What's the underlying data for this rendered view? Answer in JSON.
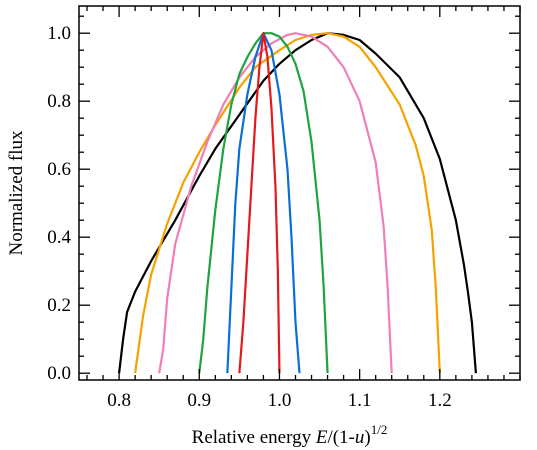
{
  "chart_data": {
    "type": "line",
    "title": "",
    "xlabel": {
      "prefix": "Relative energy ",
      "var_e": "E",
      "middle": "/(1-",
      "var_u": "u",
      "close": ")",
      "exponent": "1/2"
    },
    "ylabel": "Normalized flux",
    "xlim": [
      0.75,
      1.3
    ],
    "ylim": [
      -0.02,
      1.08
    ],
    "xticks": [
      0.8,
      0.9,
      1.0,
      1.1,
      1.2
    ],
    "xtick_labels": [
      "0.8",
      "0.9",
      "1.0",
      "1.1",
      "1.2"
    ],
    "xminor_step": 0.02,
    "yticks": [
      0.0,
      0.2,
      0.4,
      0.6,
      0.8,
      1.0
    ],
    "ytick_labels": [
      "0.0",
      "0.2",
      "0.4",
      "0.6",
      "0.8",
      "1.0"
    ],
    "yminor_step": 0.05,
    "grid": false,
    "legend": "none",
    "series": [
      {
        "color": "#000000",
        "points": [
          [
            0.8,
            0
          ],
          [
            0.805,
            0.1
          ],
          [
            0.81,
            0.18
          ],
          [
            0.82,
            0.24
          ],
          [
            0.84,
            0.33
          ],
          [
            0.87,
            0.45
          ],
          [
            0.9,
            0.58
          ],
          [
            0.92,
            0.66
          ],
          [
            0.95,
            0.76
          ],
          [
            0.98,
            0.86
          ],
          [
            1.0,
            0.91
          ],
          [
            1.02,
            0.95
          ],
          [
            1.04,
            0.98
          ],
          [
            1.06,
            1.0
          ],
          [
            1.08,
            0.995
          ],
          [
            1.1,
            0.98
          ],
          [
            1.12,
            0.94
          ],
          [
            1.15,
            0.87
          ],
          [
            1.18,
            0.75
          ],
          [
            1.2,
            0.63
          ],
          [
            1.22,
            0.45
          ],
          [
            1.23,
            0.32
          ],
          [
            1.235,
            0.24
          ],
          [
            1.24,
            0.15
          ],
          [
            1.245,
            0
          ]
        ]
      },
      {
        "color": "#f5a200",
        "points": [
          [
            0.82,
            0
          ],
          [
            0.83,
            0.17
          ],
          [
            0.84,
            0.29
          ],
          [
            0.86,
            0.44
          ],
          [
            0.88,
            0.56
          ],
          [
            0.9,
            0.65
          ],
          [
            0.92,
            0.73
          ],
          [
            0.95,
            0.84
          ],
          [
            0.97,
            0.9
          ],
          [
            1.0,
            0.95
          ],
          [
            1.02,
            0.98
          ],
          [
            1.04,
            0.995
          ],
          [
            1.06,
            1.0
          ],
          [
            1.08,
            0.99
          ],
          [
            1.1,
            0.96
          ],
          [
            1.12,
            0.9
          ],
          [
            1.15,
            0.79
          ],
          [
            1.17,
            0.67
          ],
          [
            1.18,
            0.58
          ],
          [
            1.19,
            0.42
          ],
          [
            1.195,
            0.25
          ],
          [
            1.2,
            0
          ]
        ]
      },
      {
        "color": "#ef7fb8",
        "points": [
          [
            0.85,
            0
          ],
          [
            0.855,
            0.07
          ],
          [
            0.86,
            0.22
          ],
          [
            0.87,
            0.38
          ],
          [
            0.89,
            0.55
          ],
          [
            0.91,
            0.68
          ],
          [
            0.93,
            0.79
          ],
          [
            0.95,
            0.87
          ],
          [
            0.97,
            0.93
          ],
          [
            0.99,
            0.97
          ],
          [
            1.01,
            0.995
          ],
          [
            1.02,
            1.0
          ],
          [
            1.04,
            0.99
          ],
          [
            1.06,
            0.96
          ],
          [
            1.08,
            0.9
          ],
          [
            1.1,
            0.8
          ],
          [
            1.12,
            0.62
          ],
          [
            1.13,
            0.43
          ],
          [
            1.135,
            0.25
          ],
          [
            1.14,
            0
          ]
        ]
      },
      {
        "color": "#1fa33f",
        "points": [
          [
            0.9,
            0
          ],
          [
            0.905,
            0.1
          ],
          [
            0.91,
            0.25
          ],
          [
            0.92,
            0.48
          ],
          [
            0.93,
            0.66
          ],
          [
            0.94,
            0.79
          ],
          [
            0.95,
            0.88
          ],
          [
            0.96,
            0.93
          ],
          [
            0.97,
            0.97
          ],
          [
            0.98,
            1.0
          ],
          [
            0.99,
            1.0
          ],
          [
            1.0,
            0.99
          ],
          [
            1.01,
            0.96
          ],
          [
            1.02,
            0.91
          ],
          [
            1.03,
            0.83
          ],
          [
            1.04,
            0.68
          ],
          [
            1.05,
            0.45
          ],
          [
            1.055,
            0.26
          ],
          [
            1.06,
            0
          ]
        ]
      },
      {
        "color": "#0a6fd4",
        "points": [
          [
            0.935,
            0
          ],
          [
            0.94,
            0.25
          ],
          [
            0.945,
            0.5
          ],
          [
            0.95,
            0.66
          ],
          [
            0.96,
            0.82
          ],
          [
            0.97,
            0.93
          ],
          [
            0.98,
            1.0
          ],
          [
            0.99,
            0.95
          ],
          [
            1.0,
            0.82
          ],
          [
            1.01,
            0.6
          ],
          [
            1.015,
            0.4
          ],
          [
            1.02,
            0.15
          ],
          [
            1.025,
            0
          ]
        ]
      },
      {
        "color": "#e31a1c",
        "points": [
          [
            0.95,
            0
          ],
          [
            0.955,
            0.15
          ],
          [
            0.96,
            0.35
          ],
          [
            0.965,
            0.55
          ],
          [
            0.97,
            0.75
          ],
          [
            0.975,
            0.9
          ],
          [
            0.98,
            1.0
          ],
          [
            0.985,
            0.93
          ],
          [
            0.99,
            0.78
          ],
          [
            0.995,
            0.55
          ],
          [
            0.998,
            0.3
          ],
          [
            1.0,
            0
          ]
        ]
      }
    ]
  }
}
